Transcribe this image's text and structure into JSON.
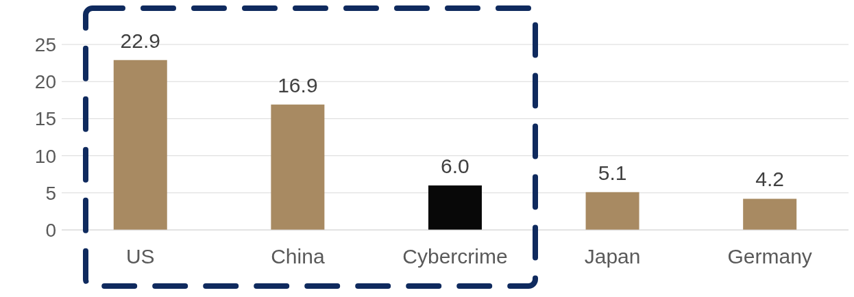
{
  "chart_data": {
    "type": "bar",
    "categories": [
      "US",
      "China",
      "Cybercrime",
      "Japan",
      "Germany"
    ],
    "values": [
      22.9,
      16.9,
      6.0,
      5.1,
      4.2
    ],
    "colors": [
      "#a88a62",
      "#a88a62",
      "#080808",
      "#a88a62",
      "#a88a62"
    ],
    "value_labels": [
      "22.9",
      "16.9",
      "6.0",
      "5.1",
      "4.2"
    ],
    "ylim": [
      0,
      25
    ],
    "yticks": [
      0,
      5,
      10,
      15,
      20,
      25
    ],
    "grid": "y"
  }
}
